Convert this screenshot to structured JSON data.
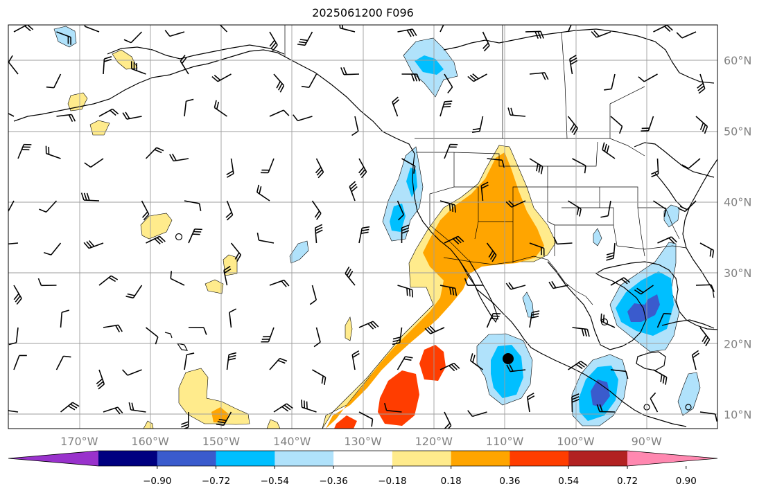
{
  "title": "2025061200 F096",
  "map": {
    "projection": "PlateCarree",
    "lon_range": [
      -180,
      -80
    ],
    "lat_range": [
      8,
      65
    ],
    "gridlines": true,
    "lon_ticks": [
      {
        "lon": -170,
        "label": "170°W"
      },
      {
        "lon": -160,
        "label": "160°W"
      },
      {
        "lon": -150,
        "label": "150°W"
      },
      {
        "lon": -140,
        "label": "140°W"
      },
      {
        "lon": -130,
        "label": "130°W"
      },
      {
        "lon": -120,
        "label": "120°W"
      },
      {
        "lon": -110,
        "label": "110°W"
      },
      {
        "lon": -100,
        "label": "100°W"
      },
      {
        "lon": -90,
        "label": "90°W"
      }
    ],
    "lat_ticks": [
      {
        "lat": 60,
        "label": "60°N"
      },
      {
        "lat": 50,
        "label": "50°N"
      },
      {
        "lat": 40,
        "label": "40°N"
      },
      {
        "lat": 30,
        "label": "30°N"
      },
      {
        "lat": 20,
        "label": "20°N"
      },
      {
        "lat": 10,
        "label": "10°N"
      }
    ],
    "coastline_color": "#000000",
    "wind_barbs": "uniform grid of wind barbs over domain"
  },
  "colorbar": {
    "orientation": "horizontal",
    "extend": "both",
    "bins": [
      {
        "color": "#9932cc"
      },
      {
        "color": "#000080"
      },
      {
        "color": "#3a5bcd"
      },
      {
        "color": "#00bfff"
      },
      {
        "color": "#b0e2fb"
      },
      {
        "color": "#ffffff"
      },
      {
        "color": "#ffeb8c"
      },
      {
        "color": "#ffa500"
      },
      {
        "color": "#ff3d00"
      },
      {
        "color": "#b22222"
      },
      {
        "color": "#ff88b0"
      }
    ],
    "tick_labels": [
      "−0.90",
      "−0.72",
      "−0.54",
      "−0.36",
      "−0.18",
      "0.18",
      "0.36",
      "0.54",
      "0.72",
      "0.90"
    ]
  },
  "anomaly_regions": [
    {
      "name": "southwest-us-positive",
      "level": "0.54",
      "color": "#ffa500"
    },
    {
      "name": "eastern-pacific-positive",
      "level": "0.72",
      "color": "#ff3d00"
    },
    {
      "name": "mexico-negative",
      "level": "-0.54",
      "color": "#00bfff"
    },
    {
      "name": "gulf-negative",
      "level": "-0.72",
      "color": "#3a5bcd"
    },
    {
      "name": "central-america-negative",
      "level": "-0.72",
      "color": "#3a5bcd"
    }
  ]
}
